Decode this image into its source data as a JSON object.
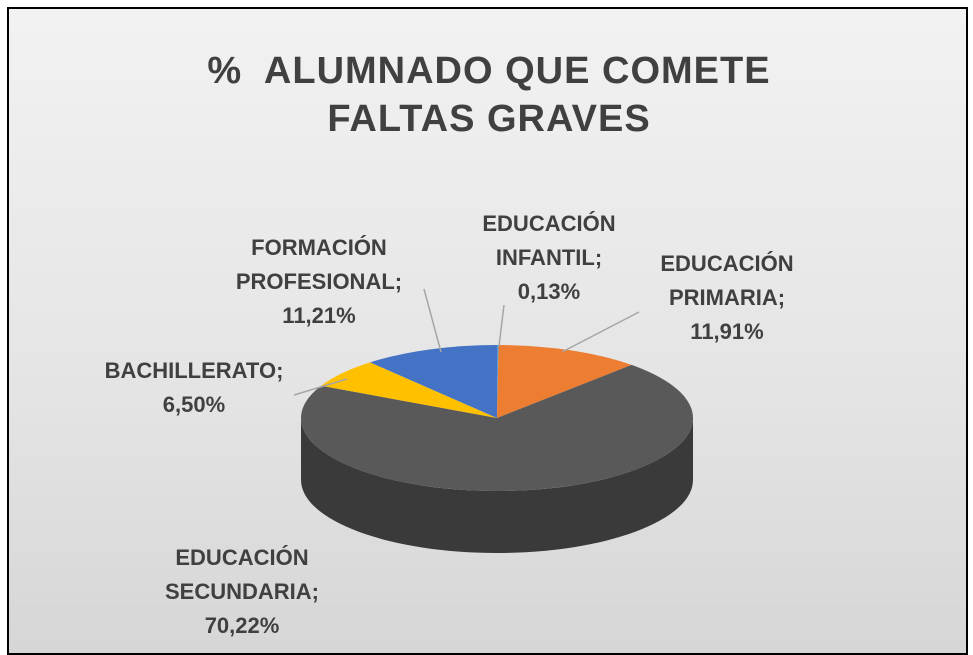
{
  "chart_data": {
    "type": "pie",
    "title": "%  ALUMNADO QUE COMETE FALTAS GRAVES",
    "categories": [
      "EDUCACIÓN INFANTIL",
      "EDUCACIÓN PRIMARIA",
      "EDUCACIÓN SECUNDARIA",
      "BACHILLERATO",
      "FORMACIÓN PROFESIONAL"
    ],
    "values": [
      0.13,
      11.91,
      70.22,
      6.5,
      11.21
    ],
    "value_labels": [
      "0,13%",
      "11,91%",
      "70,22%",
      "6,50%",
      "11,21%"
    ],
    "label_separator": ";",
    "colors": [
      "#5b9bd5",
      "#ed7d31",
      "#595959",
      "#ffc000",
      "#4472c4"
    ],
    "side_colors": [
      "#3f76a8",
      "#b85a1c",
      "#3a3a3a",
      "#c49300",
      "#2d5496"
    ],
    "three_d": true
  }
}
